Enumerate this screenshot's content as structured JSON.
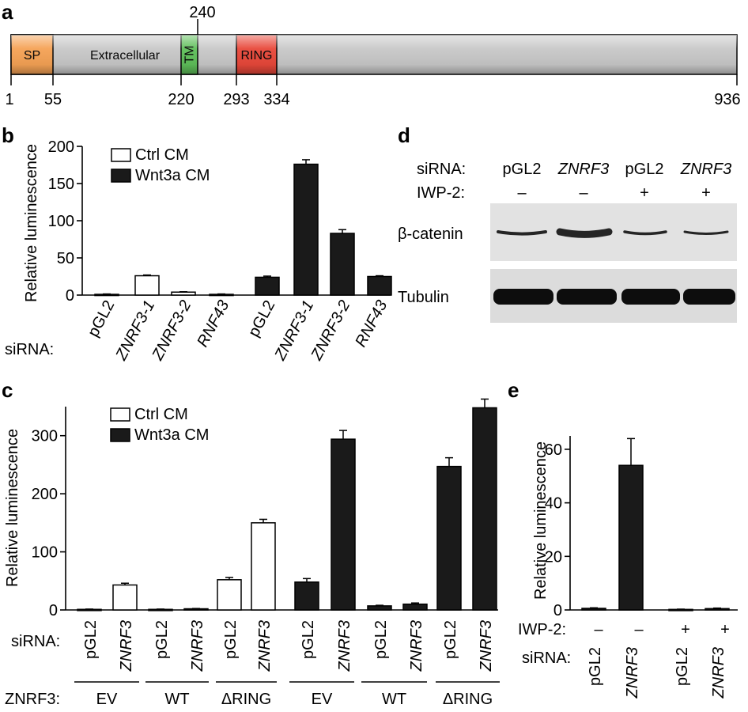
{
  "panels": {
    "a": {
      "letter": "a",
      "top_tick": "240",
      "domains": [
        {
          "label": "SP",
          "start": 1,
          "end": 55,
          "color": "#f5a255"
        },
        {
          "label": "Extracellular",
          "start": 55,
          "end": 220,
          "color": "#c8c8c8"
        },
        {
          "label": "TM",
          "start": 220,
          "end": 240,
          "color": "#5fbf5a"
        },
        {
          "label": "RING",
          "start": 293,
          "end": 334,
          "color": "#e8483a"
        }
      ],
      "ticks": [
        "1",
        "55",
        "220",
        "293",
        "334",
        "936"
      ]
    },
    "b": {
      "letter": "b"
    },
    "c": {
      "letter": "c"
    },
    "d": {
      "letter": "d",
      "sirna_label": "siRNA:",
      "iwp_label": "IWP-2:",
      "lanes": [
        {
          "sirna": "pGL2",
          "italic": false,
          "iwp": "–"
        },
        {
          "sirna": "ZNRF3",
          "italic": true,
          "iwp": "–"
        },
        {
          "sirna": "pGL2",
          "italic": false,
          "iwp": "+"
        },
        {
          "sirna": "ZNRF3",
          "italic": true,
          "iwp": "+"
        }
      ],
      "blots": [
        "β-catenin",
        "Tubulin"
      ]
    },
    "e": {
      "letter": "e"
    }
  },
  "chart_data": [
    {
      "panel": "b",
      "type": "bar",
      "ylabel": "Relative luminescence",
      "ylim": [
        0,
        200
      ],
      "yticks": [
        0,
        50,
        100,
        150,
        200
      ],
      "row_label": "siRNA:",
      "categories": [
        "pGL2",
        "ZNRF3-1",
        "ZNRF3-2",
        "RNF43",
        "pGL2",
        "ZNRF3-1",
        "ZNRF3-2",
        "RNF43"
      ],
      "italic": [
        false,
        true,
        true,
        true,
        false,
        true,
        true,
        true
      ],
      "series": [
        {
          "name": "Ctrl CM",
          "color": "#ffffff",
          "values": [
            1,
            26,
            4,
            1,
            null,
            null,
            null,
            null
          ],
          "errors": [
            0.5,
            1,
            0.5,
            0.5,
            null,
            null,
            null,
            null
          ]
        },
        {
          "name": "Wnt3a CM",
          "color": "#1a1a1a",
          "values": [
            null,
            null,
            null,
            null,
            24,
            176,
            83,
            25
          ],
          "errors": [
            null,
            null,
            null,
            null,
            1.5,
            6,
            5,
            1
          ]
        }
      ],
      "legend": "top-left"
    },
    {
      "panel": "c",
      "type": "bar",
      "ylabel": "Relative luminescence",
      "ylim": [
        0,
        350
      ],
      "yticks": [
        0,
        100,
        200,
        300
      ],
      "row_label": "siRNA:",
      "group_row_label": "ZNRF3:",
      "categories": [
        "pGL2",
        "ZNRF3",
        "pGL2",
        "ZNRF3",
        "pGL2",
        "ZNRF3",
        "pGL2",
        "ZNRF3",
        "pGL2",
        "ZNRF3",
        "pGL2",
        "ZNRF3"
      ],
      "italic": [
        false,
        true,
        false,
        true,
        false,
        true,
        false,
        true,
        false,
        true,
        false,
        true
      ],
      "groups": [
        "EV",
        "WT",
        "ΔRING",
        "EV",
        "WT",
        "ΔRING"
      ],
      "series": [
        {
          "name": "Ctrl CM",
          "color": "#ffffff",
          "values": [
            1,
            43,
            1,
            2,
            52,
            150,
            null,
            null,
            null,
            null,
            null,
            null
          ],
          "errors": [
            0.5,
            3,
            0.5,
            0.5,
            4,
            6,
            null,
            null,
            null,
            null,
            null,
            null
          ]
        },
        {
          "name": "Wnt3a CM",
          "color": "#1a1a1a",
          "values": [
            null,
            null,
            null,
            null,
            null,
            null,
            48,
            294,
            7,
            10,
            247,
            348
          ],
          "errors": [
            null,
            null,
            null,
            null,
            null,
            null,
            6,
            15,
            1,
            2,
            15,
            15
          ]
        }
      ],
      "legend": "top-left"
    },
    {
      "panel": "e",
      "type": "bar",
      "ylabel": "Relative luminescence",
      "ylim": [
        0,
        65
      ],
      "yticks": [
        0,
        20,
        40,
        60
      ],
      "categories": [
        "pGL2",
        "ZNRF3",
        "pGL2",
        "ZNRF3"
      ],
      "italic": [
        false,
        true,
        false,
        true
      ],
      "row_label_top": "IWP-2:",
      "iwp": [
        "–",
        "–",
        "+",
        "+"
      ],
      "row_label": "siRNA:",
      "series": [
        {
          "name": "",
          "color": "#1a1a1a",
          "values": [
            0.6,
            54,
            0.2,
            0.5
          ],
          "errors": [
            0.2,
            10,
            0.1,
            0.2
          ]
        }
      ]
    }
  ]
}
